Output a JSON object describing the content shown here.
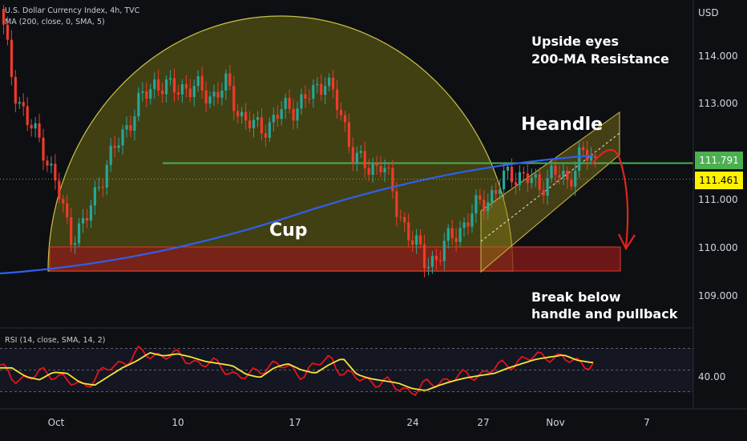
{
  "header": {
    "symbol_line": "U.S. Dollar Currency Index, 4h, TVC",
    "ma_line": "MA (200, close, 0, SMA, 5)",
    "rsi_line": "RSI (14, close, SMA, 14, 2)"
  },
  "annotations": {
    "cup": "Cup",
    "handle": "Heandle",
    "resistance_1": "Upside eyes",
    "resistance_2": "200-MA Resistance",
    "break_1": "Break below",
    "break_2": "handle and pullback"
  },
  "colors": {
    "background": "#0e0f13",
    "bull": "#26a69a",
    "bear": "#ef3a2c",
    "ma": "#2f5ff0",
    "level_line": "#4caf50",
    "cup_fill": "#6b6a12",
    "support_zone": "#8b1a1a",
    "rsi": "#e3151c",
    "rsi_ma": "#f5e53a"
  },
  "chart_data": {
    "type": "candlestick",
    "price_axis": {
      "unit_label": "USD",
      "ticks": [
        "114.000",
        "113.000",
        "111.000",
        "110.000",
        "109.000"
      ],
      "ylim": [
        108.4,
        115.3
      ]
    },
    "time_axis": {
      "ticks": [
        "Oct",
        "10",
        "17",
        "24",
        "27",
        "Nov",
        "7"
      ]
    },
    "series": [
      {
        "name": "MA (200, close, 0, SMA, 5)",
        "start": 109.5,
        "end": 111.95
      },
      {
        "name": "level",
        "value": 111.791
      },
      {
        "name": "last price",
        "value": 111.461
      }
    ],
    "badges": {
      "level": "111.791",
      "last": "111.461"
    },
    "support_zone": [
      109.55,
      110.05
    ],
    "path_approx": [
      [
        115.0,
        113.4,
        112.6,
        112.2,
        111.3,
        110.3,
        110.5,
        111.4,
        112.0,
        112.6,
        113.1,
        113.5,
        113.3,
        113.4,
        113.3,
        113.2,
        113.4,
        112.8,
        112.5,
        112.6,
        112.9,
        113.0,
        113.2,
        113.6,
        112.8,
        112.0,
        111.6,
        111.9,
        110.8,
        110.3,
        109.7,
        109.9,
        110.3,
        110.6,
        111.0,
        111.2,
        111.6,
        111.5,
        111.3,
        111.6,
        111.4,
        112.0,
        111.8
      ]
    ],
    "rsi": {
      "label": "RSI (14, close, SMA, 14, 2)",
      "ticks": [
        "40.00"
      ],
      "bands": [
        70,
        50,
        30
      ],
      "values": [
        52,
        44,
        41,
        48,
        47,
        38,
        36,
        44,
        52,
        58,
        66,
        63,
        65,
        62,
        58,
        56,
        54,
        46,
        43,
        52,
        56,
        50,
        47,
        55,
        61,
        46,
        42,
        40,
        38,
        33,
        31,
        36,
        40,
        43,
        45,
        47,
        52,
        56,
        60,
        62,
        64,
        59,
        57,
        56
      ]
    }
  }
}
